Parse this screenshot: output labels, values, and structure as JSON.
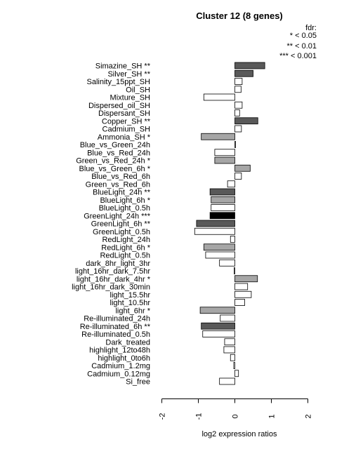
{
  "chart_data": {
    "type": "bar",
    "orientation": "horizontal",
    "title": "Cluster 12 (8 genes)",
    "xlabel": "log2 expression ratios",
    "ylabel": "",
    "xlim": [
      -2,
      2
    ],
    "xticks": [
      "-2",
      "-1",
      "0",
      "1",
      "2"
    ],
    "legend": {
      "title": "fdr:",
      "entries": [
        "* < 0.05",
        "** < 0.01",
        "*** < 0.001"
      ],
      "placement": "top-right"
    },
    "colors": {
      "none": "#ffffff",
      "fdr_0.05": "#a6a6a6",
      "fdr_0.01": "#595959",
      "fdr_0.001": "#000000",
      "border": "#000000"
    },
    "categories": [
      "Simazine_SH **",
      "Silver_SH **",
      "Salinity_15ppt_SH",
      "Oil_SH",
      "Mixture_SH",
      "Dispersed_oil_SH",
      "Dispersant_SH",
      "Copper_SH **",
      "Cadmium_SH",
      "Ammonia_SH *",
      "Blue_vs_Green_24h",
      "Blue_vs_Red_24h",
      "Green_vs_Red_24h *",
      "Blue_vs_Green_6h *",
      "Blue_vs_Red_6h",
      "Green_vs_Red_6h",
      "BlueLight_24h **",
      "BlueLight_6h *",
      "BlueLight_0.5h",
      "GreenLight_24h ***",
      "GreenLight_6h **",
      "GreenLight_0.5h",
      "RedLight_24h",
      "RedLight_6h *",
      "RedLight_0.5h",
      "dark_8hr_light_3hr",
      "light_16hr_dark_7.5hr",
      "light_16hr_dark_4hr *",
      "light_16hr_dark_30min",
      "light_15.5hr",
      "light_10.5hr",
      "light_6hr *",
      "Re-illuminated_24h",
      "Re-illuminated_6h **",
      "Re-illuminated_0.5h",
      "Dark_treated",
      "highlight_12to48h",
      "highlight_0to6h",
      "Cadmium_1.2mg",
      "Cadmium_0.12mg",
      "Si_free"
    ],
    "values": [
      0.82,
      0.5,
      0.2,
      0.17,
      -0.85,
      0.2,
      0.13,
      0.63,
      0.18,
      -0.92,
      0.02,
      -0.55,
      -0.55,
      0.42,
      0.18,
      -0.2,
      -0.68,
      -0.65,
      -0.65,
      -0.68,
      -1.05,
      -1.1,
      -0.12,
      -0.85,
      -0.8,
      -0.42,
      -0.02,
      0.62,
      0.35,
      0.45,
      0.27,
      -0.95,
      -0.4,
      -0.92,
      -0.88,
      -0.28,
      -0.3,
      -0.12,
      -0.03,
      0.1,
      -0.42
    ],
    "significance": [
      2,
      2,
      0,
      0,
      0,
      0,
      0,
      2,
      0,
      1,
      0,
      0,
      1,
      1,
      0,
      0,
      2,
      1,
      0,
      3,
      2,
      0,
      0,
      1,
      0,
      0,
      0,
      1,
      0,
      0,
      0,
      1,
      0,
      2,
      0,
      0,
      0,
      0,
      0,
      0,
      0
    ]
  }
}
